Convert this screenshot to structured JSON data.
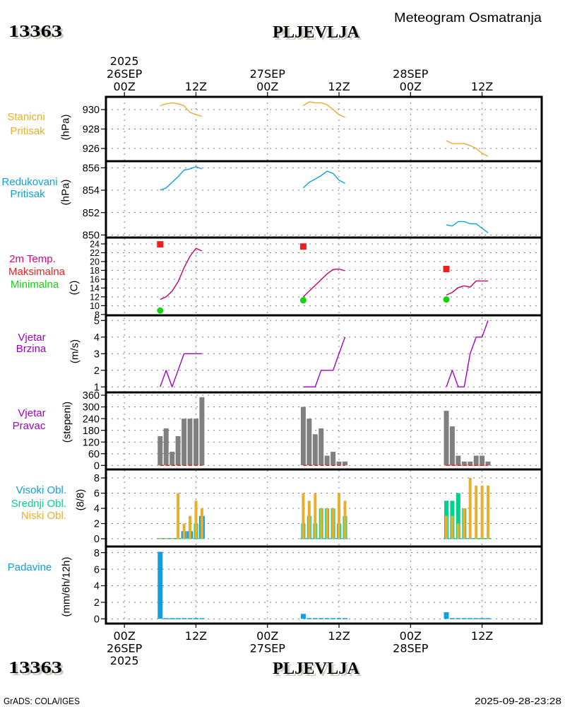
{
  "header": {
    "station_id": "13363",
    "station_name": "PLJEVLJA",
    "subtitle": "Meteogram Osmatranja"
  },
  "footer": {
    "station_id": "13363",
    "station_name": "PLJEVLJA",
    "credit": "GrADS: COLA/IGES",
    "timestamp": "2025-09-28-23:28"
  },
  "time_axis": {
    "reference": "26SEP2025 00Z",
    "xlim_hours": [
      -3.1,
      70.0
    ],
    "ticks": [
      {
        "hour": 0,
        "top": [
          "2025",
          "26SEP",
          "00Z"
        ],
        "bottom": [
          "00Z",
          "26SEP",
          "2025"
        ]
      },
      {
        "hour": 12,
        "top": [
          "12Z"
        ],
        "bottom": [
          "12Z"
        ]
      },
      {
        "hour": 24,
        "top": [
          "27SEP",
          "00Z"
        ],
        "bottom": [
          "00Z",
          "27SEP"
        ]
      },
      {
        "hour": 36,
        "top": [
          "12Z"
        ],
        "bottom": [
          "12Z"
        ]
      },
      {
        "hour": 48,
        "top": [
          "28SEP",
          "00Z"
        ],
        "bottom": [
          "00Z",
          "28SEP"
        ]
      },
      {
        "hour": 60,
        "top": [
          "12Z"
        ],
        "bottom": [
          "12Z"
        ]
      }
    ]
  },
  "chart_data": [
    {
      "type": "line",
      "legend": [
        {
          "text": "Stanicni",
          "color": "#e6af2d"
        },
        {
          "text": "Pritisak",
          "color": "#e6af2d"
        }
      ],
      "ylabel": "(hPa)",
      "yticks": [
        926,
        928,
        930
      ],
      "ylim": [
        924.69,
        931.31
      ],
      "grid": true,
      "x": [
        6,
        7,
        8,
        9,
        10,
        11,
        12,
        13,
        30,
        31,
        32,
        33,
        34,
        35,
        36,
        37,
        54,
        55,
        56,
        57,
        58,
        59,
        60,
        61
      ],
      "series": [
        {
          "name": "Stanicni Pritisak",
          "color": "#e6af2d",
          "values": [
            930.4,
            930.6,
            930.7,
            930.6,
            930.4,
            929.7,
            929.5,
            929.3,
            930.4,
            930.8,
            930.7,
            930.7,
            930.5,
            930.0,
            929.5,
            929.2,
            926.8,
            926.5,
            926.5,
            926.5,
            926.3,
            926.0,
            925.5,
            925.2
          ]
        }
      ]
    },
    {
      "type": "line",
      "legend": [
        {
          "text": "Redukovani",
          "color": "#10a0e0"
        },
        {
          "text": "Pritisak",
          "color": "#10a0e0"
        }
      ],
      "ylabel": "(hPa)",
      "yticks": [
        850,
        852,
        854,
        856
      ],
      "ylim": [
        849.77,
        856.59
      ],
      "grid": true,
      "x": [
        6,
        7,
        8,
        9,
        10,
        11,
        12,
        13,
        30,
        31,
        32,
        33,
        34,
        35,
        36,
        37,
        54,
        55,
        56,
        57,
        58,
        59,
        60,
        61
      ],
      "series": [
        {
          "name": "Redukovani Pritisak",
          "color": "#10a0e0",
          "values": [
            854.0,
            854.2,
            854.7,
            855.2,
            855.8,
            855.9,
            856.1,
            855.9,
            854.2,
            854.7,
            855.0,
            855.3,
            855.7,
            855.5,
            854.9,
            854.6,
            850.9,
            850.8,
            851.2,
            851.2,
            851.0,
            851.0,
            850.6,
            850.2
          ]
        }
      ]
    },
    {
      "type": "line",
      "legend": [
        {
          "text": "2m Temp.",
          "color": "#e6007e"
        },
        {
          "text": "Maksimalna",
          "color": "#f01e1e"
        },
        {
          "text": "Minimalna",
          "color": "#14d214"
        }
      ],
      "ylabel": "(C)",
      "yticks": [
        8,
        10,
        12,
        14,
        16,
        18,
        20,
        22,
        24
      ],
      "ylim": [
        7.81,
        25.44
      ],
      "grid": true,
      "x": [
        6,
        7,
        8,
        9,
        10,
        11,
        12,
        13,
        30,
        31,
        32,
        33,
        34,
        35,
        36,
        37,
        54,
        55,
        56,
        57,
        58,
        59,
        60,
        61
      ],
      "series": [
        {
          "name": "2m Temp.",
          "color": "#c8006e",
          "values": [
            11.4,
            12.0,
            13.3,
            15.4,
            18.6,
            21.2,
            23.0,
            22.4,
            12.0,
            13.3,
            14.6,
            15.9,
            17.2,
            18.2,
            18.3,
            17.9,
            12.4,
            13.0,
            14.1,
            14.5,
            14.2,
            15.6,
            15.6,
            15.6
          ]
        }
      ],
      "markers": [
        {
          "name": "Maksimalna",
          "shape": "square",
          "color": "#f01e1e",
          "points": [
            {
              "x": 6,
              "y": 23.9
            },
            {
              "x": 30,
              "y": 23.4
            },
            {
              "x": 54,
              "y": 18.3
            }
          ]
        },
        {
          "name": "Minimalna",
          "shape": "circle",
          "color": "#14d214",
          "points": [
            {
              "x": 6,
              "y": 8.9
            },
            {
              "x": 30,
              "y": 11.2
            },
            {
              "x": 54,
              "y": 11.4
            }
          ]
        }
      ]
    },
    {
      "type": "line",
      "legend": [
        {
          "text": "Vjetar",
          "color": "#a000c8"
        },
        {
          "text": "Brzina",
          "color": "#a000c8"
        }
      ],
      "ylabel": "(m/s)",
      "yticks": [
        1,
        2,
        3,
        4,
        5
      ],
      "ylim": [
        0.67,
        5.31
      ],
      "grid": true,
      "x": [
        6,
        7,
        8,
        9,
        10,
        11,
        12,
        13,
        30,
        31,
        32,
        33,
        34,
        35,
        36,
        37,
        54,
        55,
        56,
        57,
        58,
        59,
        60,
        61
      ],
      "series": [
        {
          "name": "Vjetar Brzina",
          "color": "#a000c8",
          "values": [
            1,
            2,
            1,
            2,
            3,
            3,
            3,
            3,
            1,
            1,
            1,
            2,
            2,
            2,
            3,
            4,
            1,
            2,
            1,
            1,
            3,
            4,
            4,
            5
          ]
        }
      ]
    },
    {
      "type": "bar",
      "legend": [
        {
          "text": "Vjetar",
          "color": "#a000c8"
        },
        {
          "text": "Pravac",
          "color": "#a000c8"
        }
      ],
      "ylabel": "(stepeni)",
      "yticks": [
        0,
        60,
        120,
        180,
        240,
        300,
        360
      ],
      "ylim": [
        -20.7,
        374.5
      ],
      "grid": true,
      "x": [
        6,
        7,
        8,
        9,
        10,
        11,
        12,
        13,
        30,
        31,
        32,
        33,
        34,
        35,
        36,
        37,
        54,
        55,
        56,
        57,
        58,
        59,
        60,
        61
      ],
      "series": [
        {
          "name": "Vjetar Pravac",
          "color": "#808080",
          "values": [
            150,
            190,
            70,
            150,
            240,
            240,
            240,
            350,
            300,
            240,
            160,
            190,
            50,
            70,
            20,
            20,
            280,
            200,
            50,
            20,
            20,
            50,
            50,
            20
          ]
        }
      ],
      "reference_lines": [
        {
          "value": 0,
          "color": "#e62828",
          "style": "dashed",
          "spans_hours": [
            [
              6,
              13
            ],
            [
              30,
              37
            ],
            [
              54,
              61
            ]
          ]
        }
      ]
    },
    {
      "type": "bar",
      "legend": [
        {
          "text": "Visoki Obl.",
          "color": "#10a0e0"
        },
        {
          "text": "Srednji Obl.",
          "color": "#00d28c"
        },
        {
          "text": "Niski Obl.",
          "color": "#e6af2d"
        }
      ],
      "ylabel": "(8/8)",
      "yticks": [
        0,
        2,
        4,
        6,
        8
      ],
      "ylim": [
        -1.02,
        9.12
      ],
      "grid": true,
      "x": [
        6,
        7,
        8,
        9,
        10,
        11,
        12,
        13,
        30,
        31,
        32,
        33,
        34,
        35,
        36,
        37,
        54,
        55,
        56,
        57,
        58,
        59,
        60,
        61
      ],
      "series": [
        {
          "name": "Visoki Obl.",
          "color": "#10a0e0",
          "values": [
            0,
            0,
            0,
            0,
            1,
            1,
            0,
            3,
            0,
            0,
            0,
            0,
            0,
            0,
            0,
            0,
            0,
            0,
            0,
            0,
            0,
            0,
            0,
            0
          ]
        },
        {
          "name": "Srednji Obl.",
          "color": "#00d28c",
          "values": [
            0,
            0,
            0,
            0,
            0,
            0,
            2,
            0,
            2,
            3,
            2,
            4,
            4,
            4,
            2,
            3,
            5,
            5,
            6,
            4,
            0,
            0,
            0,
            0
          ]
        },
        {
          "name": "Niski Obl.",
          "color": "#e6af2d",
          "values": [
            0,
            0,
            0,
            6,
            2,
            3,
            5,
            4,
            6,
            5,
            6,
            4,
            4,
            4,
            6,
            5,
            3,
            3,
            2,
            4,
            8,
            7,
            7,
            7
          ]
        }
      ]
    },
    {
      "type": "bar",
      "legend": [
        {
          "text": "Padavine",
          "color": "#10a0e0"
        }
      ],
      "ylabel": "(mm/6h/12h)",
      "yticks": [
        0,
        2,
        4,
        6,
        8
      ],
      "ylim": [
        -0.57,
        8.74
      ],
      "grid": true,
      "x": [
        6,
        7,
        8,
        9,
        10,
        11,
        12,
        13,
        30,
        31,
        32,
        33,
        34,
        35,
        36,
        37,
        54,
        55,
        56,
        57,
        58,
        59,
        60,
        61
      ],
      "series": [
        {
          "name": "Padavine",
          "color": "#10a0e0",
          "values": [
            8.1,
            0,
            0,
            0,
            0,
            0,
            0,
            0,
            0.6,
            0,
            0,
            0,
            0,
            0,
            0,
            0,
            0.8,
            0,
            0,
            0,
            0,
            0,
            0,
            0
          ]
        }
      ]
    }
  ]
}
